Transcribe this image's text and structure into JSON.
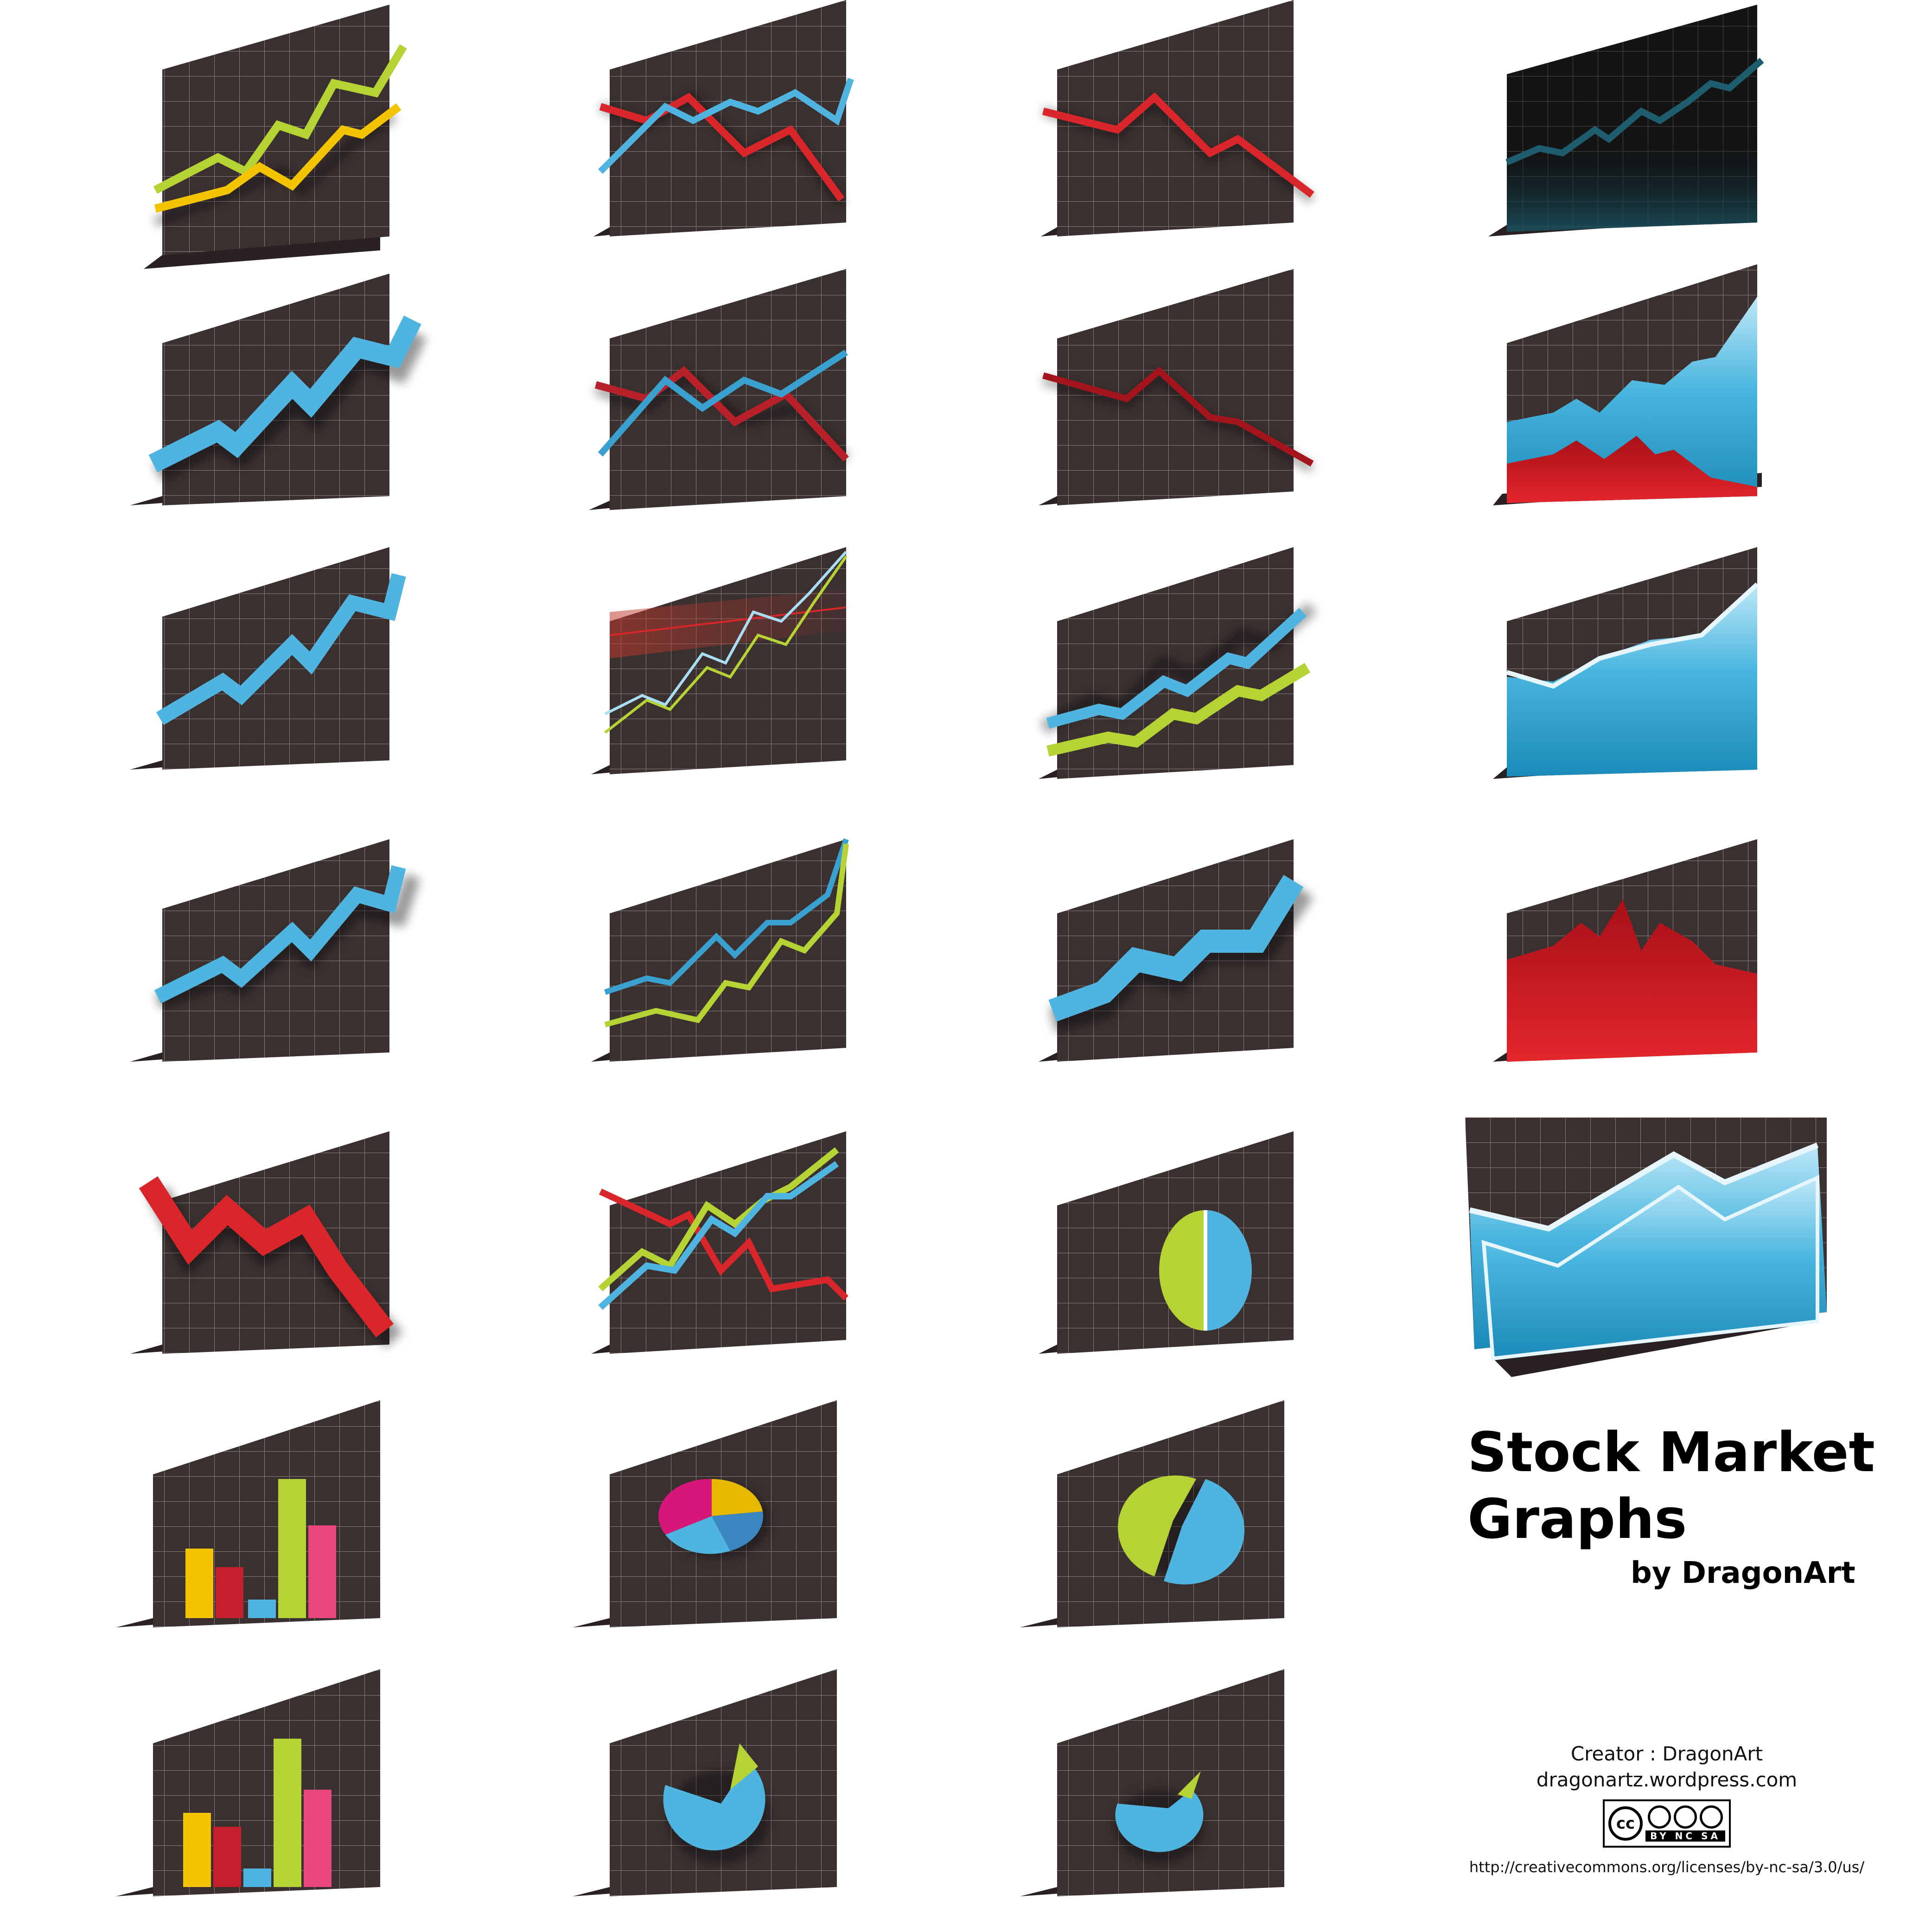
{
  "title": {
    "line1": "Stock Market",
    "line2": "Graphs",
    "byline": "by DragonArt"
  },
  "credits": {
    "creator": "Creator : DragonArt",
    "website": "dragonartz.wordpress.com",
    "license_badge_text": "BY NC SA",
    "license_url": "http://creativecommons.org/licenses/by-nc-sa/3.0/us/"
  },
  "colors": {
    "panel": "#3a3030",
    "panel_dark": "#241c1c",
    "grid_line": "#8a7f7f",
    "blue": "#4fb4e0",
    "light_blue": "#a9ddf3",
    "green": "#b5d334",
    "yellow": "#f4c400",
    "red": "#d8262b",
    "pink": "#e8467d",
    "magenta": "#d5177a",
    "gold": "#e6b800",
    "dark_teal": "#1d5d6e"
  },
  "icons": [
    {
      "name": "dual-line-green-yellow-rising-icon"
    },
    {
      "name": "dual-line-red-blue-crossing-icon"
    },
    {
      "name": "red-line-falling-icon"
    },
    {
      "name": "dark-glass-line-rising-icon"
    },
    {
      "name": "thick-blue-line-rising-icon"
    },
    {
      "name": "dual-line-red-blue-3d-icon"
    },
    {
      "name": "dark-red-line-falling-icon"
    },
    {
      "name": "blue-red-area-chart-icon"
    },
    {
      "name": "blue-line-rising-icon"
    },
    {
      "name": "thin-lines-glow-rising-icon"
    },
    {
      "name": "dual-ribbon-blue-green-3d-icon"
    },
    {
      "name": "blue-area-glossy-icon"
    },
    {
      "name": "blue-line-rising-shadow-icon"
    },
    {
      "name": "dual-line-blue-green-3d-icon"
    },
    {
      "name": "thick-blue-ribbon-rising-icon"
    },
    {
      "name": "red-area-3d-icon"
    },
    {
      "name": "thick-red-line-falling-icon"
    },
    {
      "name": "triple-line-crossing-icon"
    },
    {
      "name": "half-pie-green-blue-icon"
    },
    {
      "name": "bar-chart-flat-icon"
    },
    {
      "name": "pie-chart-multicolor-icon"
    },
    {
      "name": "split-pie-green-blue-icon"
    },
    {
      "name": "bar-chart-3d-icon"
    },
    {
      "name": "pie-chart-blue-slice-icon"
    },
    {
      "name": "pie-chart-small-slice-icon"
    },
    {
      "name": "large-blue-area-3d-icon"
    }
  ]
}
